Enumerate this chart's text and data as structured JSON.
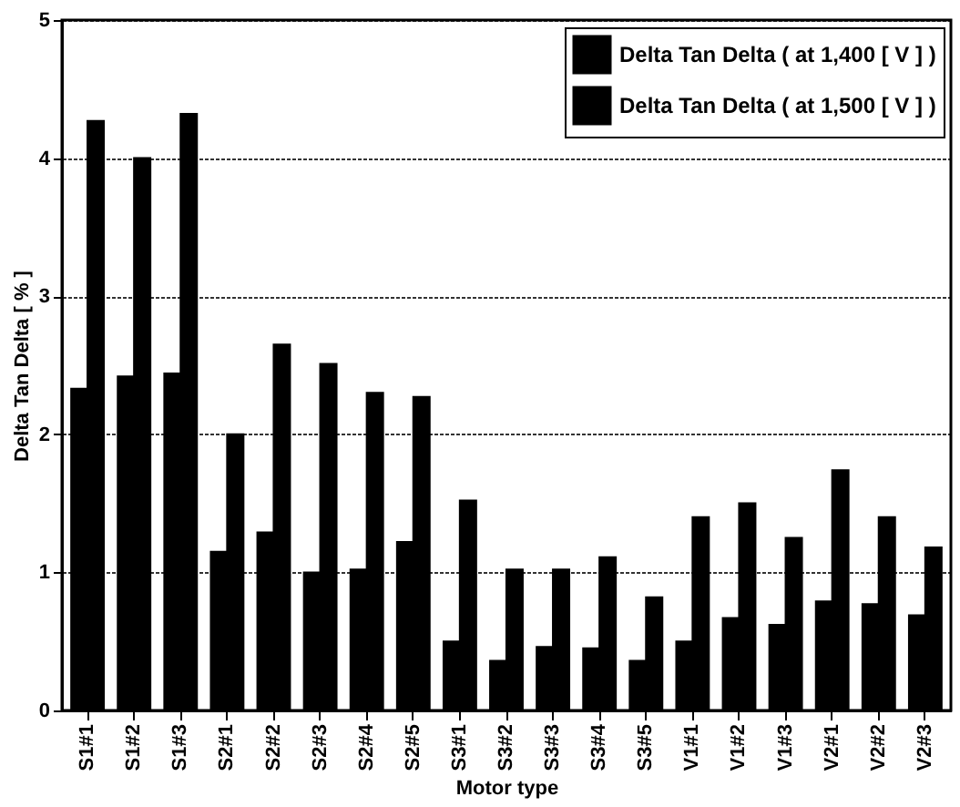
{
  "chart_data": {
    "type": "bar",
    "xlabel": "Motor type",
    "ylabel": "Delta Tan Delta [ % ]",
    "categories": [
      "S1#1",
      "S1#2",
      "S1#3",
      "S2#1",
      "S2#2",
      "S2#3",
      "S2#4",
      "S2#5",
      "S3#1",
      "S3#2",
      "S3#3",
      "S3#4",
      "S3#5",
      "V1#1",
      "V1#2",
      "V1#3",
      "V2#1",
      "V2#2",
      "V2#3"
    ],
    "series": [
      {
        "name": "Delta Tan Delta ( at 1,400 [ V ] )",
        "color": "#000000",
        "values": [
          2.33,
          2.42,
          2.44,
          1.15,
          1.29,
          1.0,
          1.02,
          1.22,
          0.5,
          0.36,
          0.46,
          0.45,
          0.36,
          0.5,
          0.67,
          0.62,
          0.79,
          0.77,
          0.69
        ]
      },
      {
        "name": "Delta Tan Delta ( at 1,500 [ V ] )",
        "color": "#000000",
        "values": [
          4.27,
          4.0,
          4.32,
          2.0,
          2.65,
          2.51,
          2.3,
          2.27,
          1.52,
          1.02,
          1.02,
          1.11,
          0.82,
          1.4,
          1.5,
          1.25,
          1.74,
          1.4,
          1.18
        ]
      }
    ],
    "ylim": [
      0,
      5
    ],
    "yticks": [
      0,
      1,
      2,
      3,
      4,
      5
    ],
    "grid": "y",
    "legend": "top right"
  }
}
